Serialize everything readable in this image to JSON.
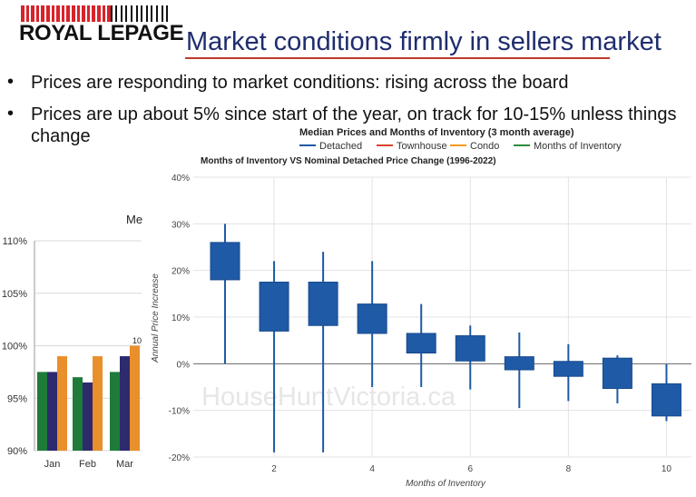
{
  "header": {
    "logo_text": "ROYAL LEPAGE",
    "title": "Market conditions firmly in sellers market"
  },
  "bullets": [
    {
      "marker": "•",
      "text": "Prices are responding to market conditions: rising across the board"
    },
    {
      "marker": "•",
      "text": "Prices are up about 5% since start of the year, on track for 10-15% unless things change"
    }
  ],
  "colors": {
    "title": "#1f2d6e",
    "rule": "#c0392b",
    "box": "#1f5aa6",
    "bar_green": "#1e7b3a",
    "bar_purple": "#2d2a6e",
    "bar_orange": "#e98f2b",
    "legend_detached": "#1f5aa6",
    "legend_townhouse": "#d6452b",
    "legend_condo": "#f29b1f",
    "legend_inventory": "#2e8b3a"
  },
  "chart_data": [
    {
      "type": "bar",
      "title": "Me",
      "categories": [
        "Jan",
        "Feb",
        "Mar"
      ],
      "series": [
        {
          "values": [
            97.5,
            97.0,
            97.5
          ]
        },
        {
          "values": [
            97.5,
            96.5,
            99.0
          ]
        },
        {
          "values": [
            99.0,
            99.0,
            100.0
          ]
        }
      ],
      "yticks": [
        "110%",
        "105%",
        "100%",
        "95%",
        "90%"
      ],
      "ylim": [
        90,
        110
      ],
      "data_label": "10",
      "grid": true
    },
    {
      "type": "box",
      "header_title": "Median Prices and Months of Inventory (3 month average)",
      "legend": [
        "Detached",
        "Townhouse",
        "Condo",
        "Months of Inventory"
      ],
      "title": "Months of Inventory VS Nominal Detached Price Change (1996-2022)",
      "xlabel": "Months of Inventory",
      "ylabel": "Annual Price Increase",
      "watermark": "HouseHuntVictoria.ca",
      "xlim": [
        0,
        10.8
      ],
      "ylim": [
        -20,
        40
      ],
      "xticks": [
        2,
        4,
        6,
        8,
        10
      ],
      "yticks": [
        "40%",
        "30%",
        "20%",
        "10%",
        "0%",
        "-10%",
        "-20%"
      ],
      "grid": true,
      "boxes": [
        {
          "x": 1,
          "whisker_low": 0,
          "q1": 18,
          "q3": 26,
          "whisker_high": 30
        },
        {
          "x": 2,
          "whisker_low": -19,
          "q1": 7,
          "q3": 17.5,
          "whisker_high": 22
        },
        {
          "x": 3,
          "whisker_low": -19,
          "q1": 8.2,
          "q3": 17.5,
          "whisker_high": 24
        },
        {
          "x": 4,
          "whisker_low": -5,
          "q1": 6.5,
          "q3": 12.8,
          "whisker_high": 22
        },
        {
          "x": 5,
          "whisker_low": -5,
          "q1": 2.3,
          "q3": 6.5,
          "whisker_high": 12.8
        },
        {
          "x": 6,
          "whisker_low": -5.5,
          "q1": 0.6,
          "q3": 6,
          "whisker_high": 8.2
        },
        {
          "x": 7,
          "whisker_low": -9.5,
          "q1": -1.3,
          "q3": 1.5,
          "whisker_high": 6.7
        },
        {
          "x": 8,
          "whisker_low": -8,
          "q1": -2.7,
          "q3": 0.5,
          "whisker_high": 4.2
        },
        {
          "x": 9,
          "whisker_low": -8.5,
          "q1": -5.3,
          "q3": 1.2,
          "whisker_high": 1.8
        },
        {
          "x": 10,
          "whisker_low": -12.3,
          "q1": -11.2,
          "q3": -4.3,
          "whisker_high": 0
        }
      ]
    }
  ]
}
